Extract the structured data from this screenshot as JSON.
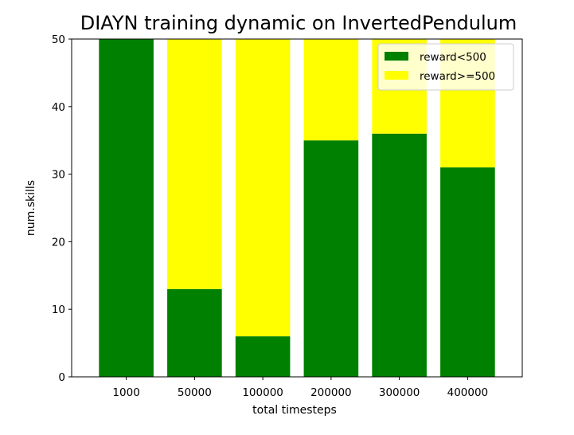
{
  "chart_data": {
    "type": "bar",
    "stacked": true,
    "title": "DIAYN training dynamic on InvertedPendulum",
    "xlabel": "total timesteps",
    "ylabel": "num.skills",
    "categories": [
      "1000",
      "50000",
      "100000",
      "200000",
      "300000",
      "400000"
    ],
    "ylim": [
      0,
      50
    ],
    "yticks": [
      0,
      10,
      20,
      30,
      40,
      50
    ],
    "grid": false,
    "legend_position": "top-right",
    "series": [
      {
        "name": "reward<500",
        "color": "#008000",
        "values": [
          50,
          13,
          6,
          35,
          36,
          31
        ]
      },
      {
        "name": "reward>=500",
        "color": "#ffff00",
        "values": [
          0,
          37,
          44,
          15,
          14,
          19
        ]
      }
    ]
  }
}
